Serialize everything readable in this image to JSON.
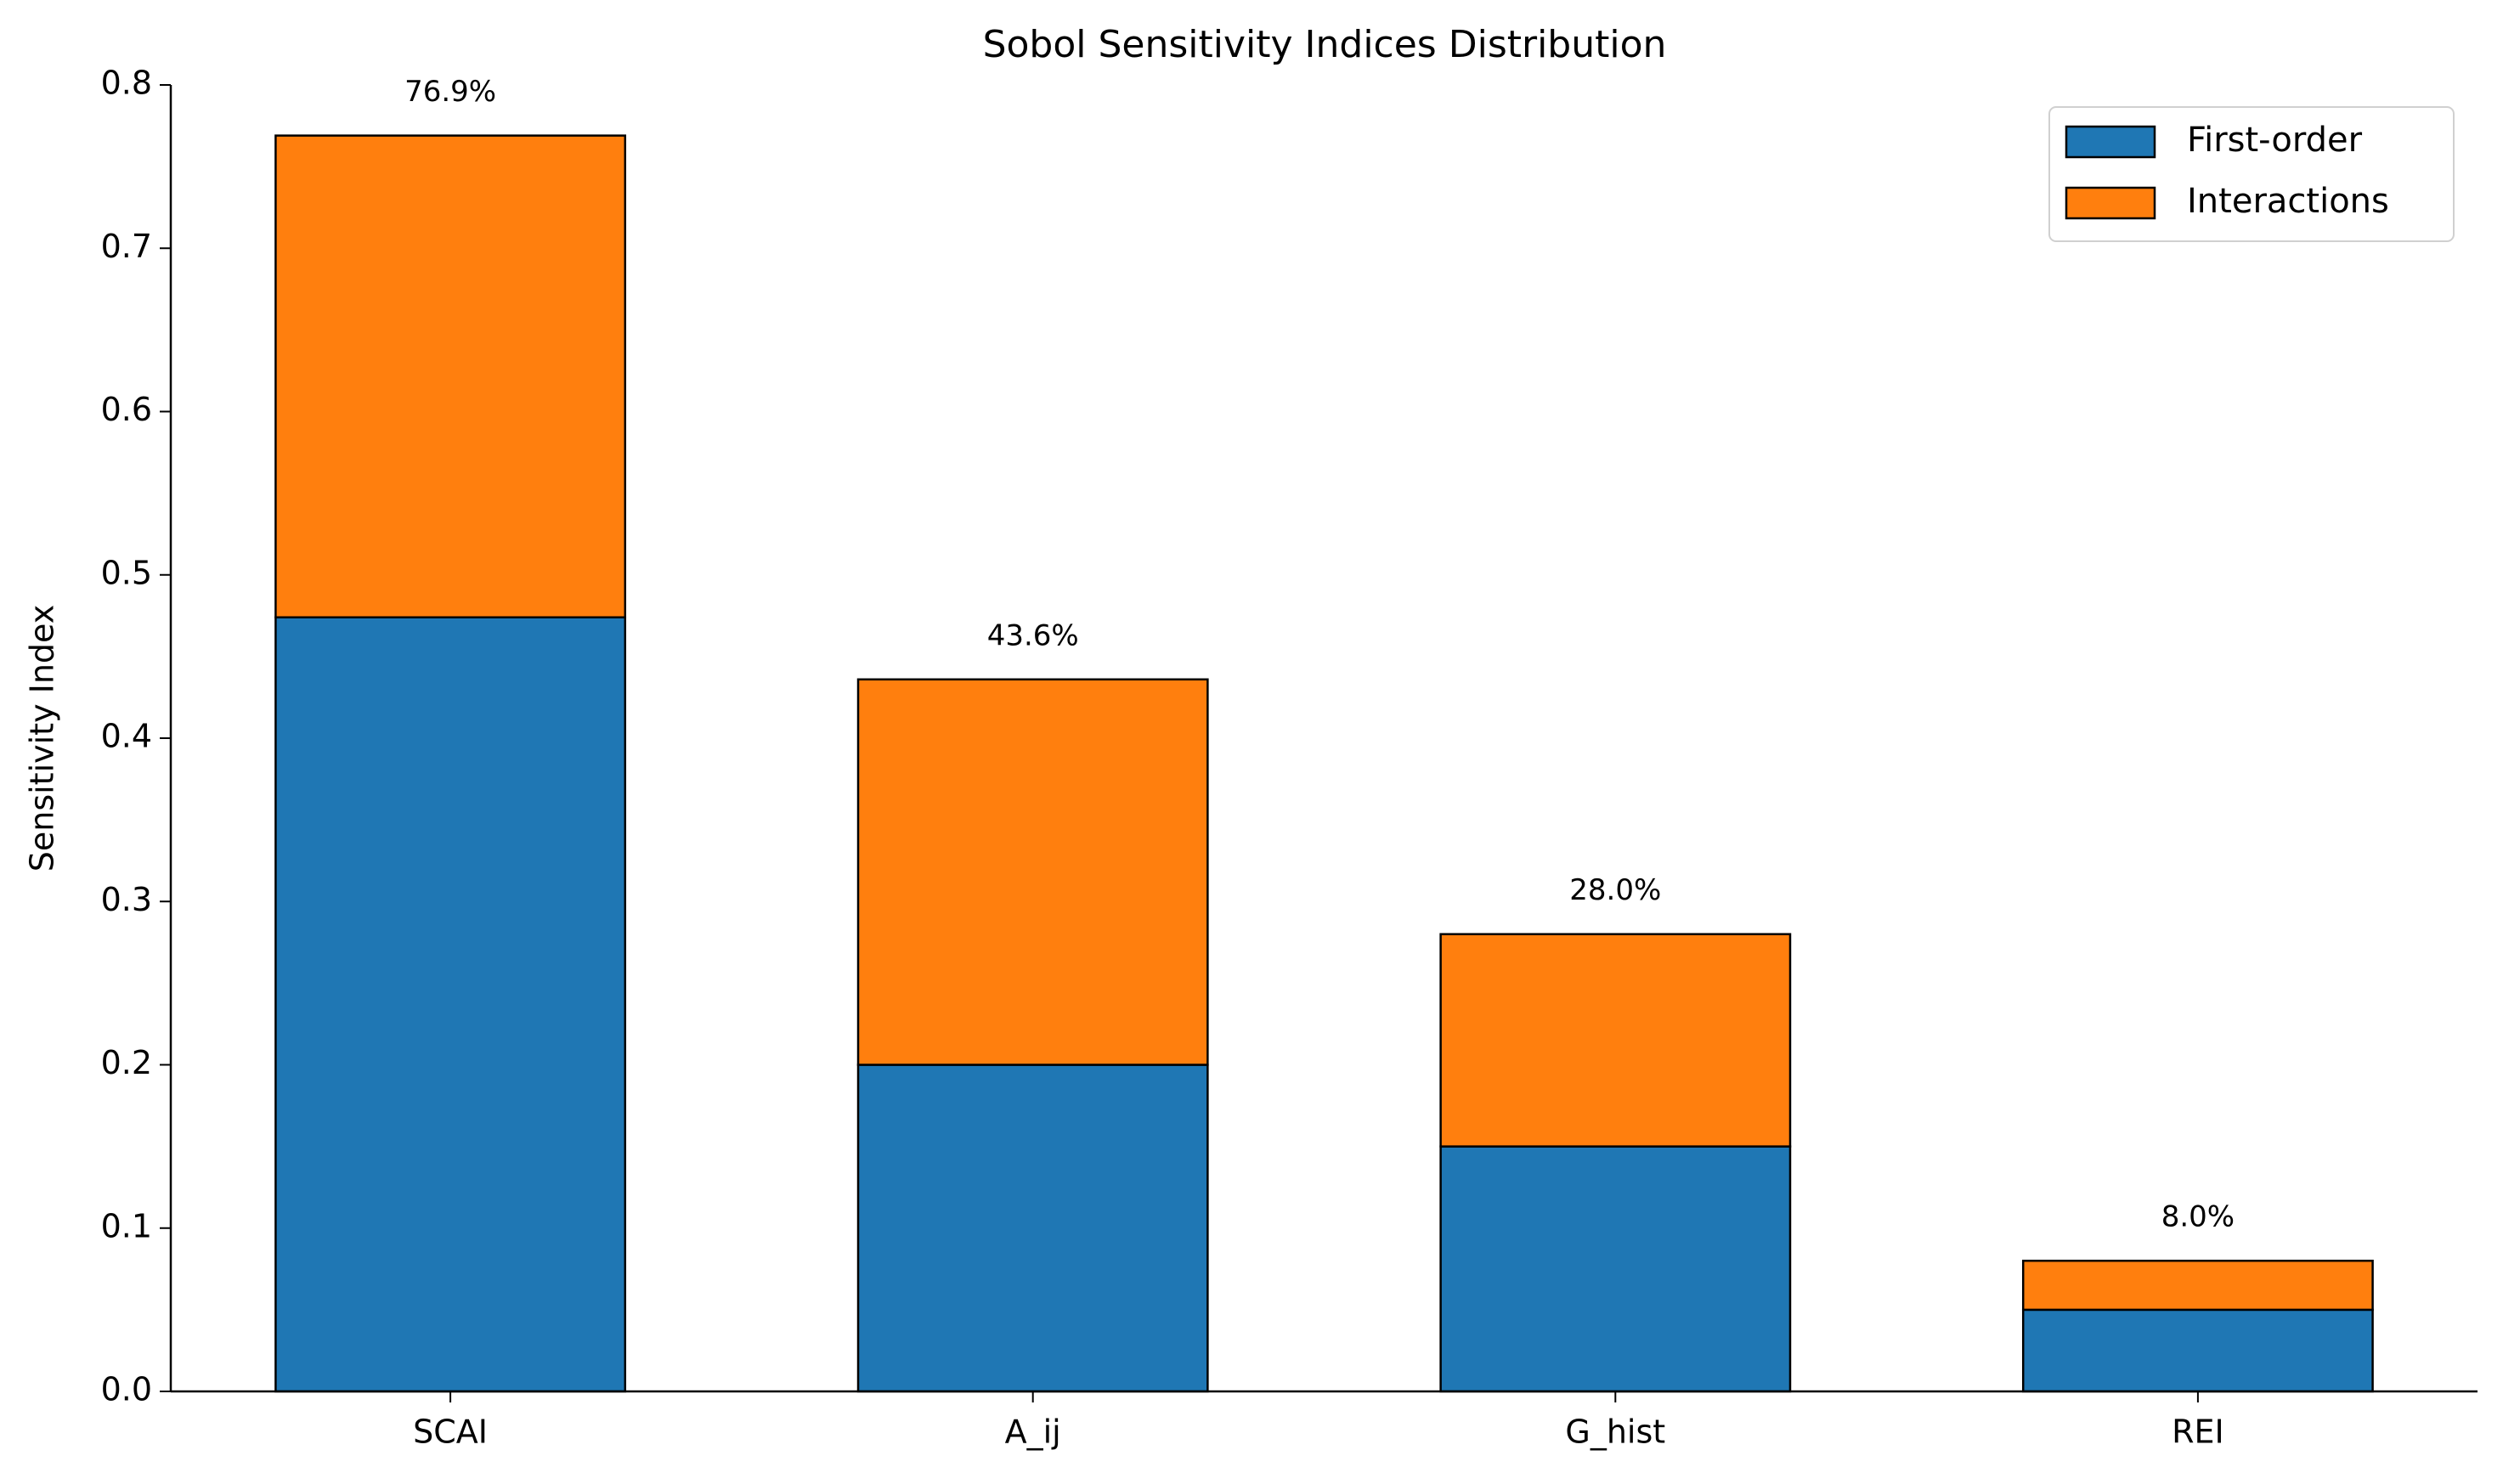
{
  "chart_data": {
    "type": "stacked_bar",
    "title": "Sobol Sensitivity Indices Distribution",
    "y_label": "Sensitivity Index",
    "categories": [
      "SCAI",
      "A_ij",
      "G_hist",
      "REI"
    ],
    "series": [
      {
        "name": "First-order",
        "color": "#1f77b4",
        "values": [
          0.474,
          0.2,
          0.15,
          0.05
        ]
      },
      {
        "name": "Interactions",
        "color": "#ff7f0e",
        "values": [
          0.295,
          0.236,
          0.13,
          0.03
        ]
      }
    ],
    "totals": {
      "values": [
        0.769,
        0.436,
        0.28,
        0.08
      ],
      "value_labels": [
        "76.9%",
        "43.6%",
        "28.0%",
        "8.0%"
      ]
    },
    "ylim": [
      0,
      0.8
    ],
    "yticks": [
      {
        "value": 0,
        "label": "0.0"
      },
      0.1,
      0.2,
      0.3,
      0.4,
      0.5,
      0.6,
      0.7,
      0.8
    ],
    "legend": "upper right",
    "grid": false
  }
}
